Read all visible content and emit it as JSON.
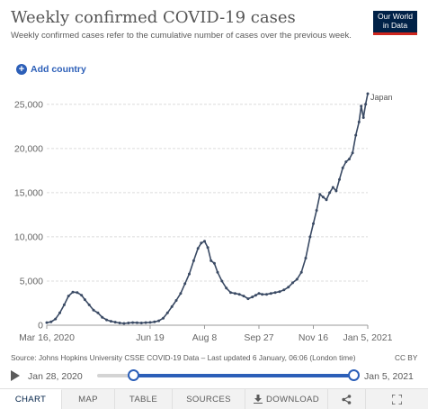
{
  "header": {
    "title": "Weekly confirmed COVID-19 cases",
    "subtitle": "Weekly confirmed cases refer to the cumulative number of cases over the previous week.",
    "logo_line1": "Our World",
    "logo_line2": "in Data"
  },
  "controls": {
    "add_country_label": "Add country"
  },
  "footer": {
    "source": "Source: Johns Hopkins University CSSE COVID-19 Data – Last updated 6 January, 06:06 (London time)",
    "license": "CC BY"
  },
  "timeline": {
    "start_label": "Jan 28, 2020",
    "end_label": "Jan 5, 2021",
    "range_start_fraction": 0.14,
    "range_end_fraction": 0.99
  },
  "tabs": {
    "chart": "CHART",
    "map": "MAP",
    "table": "TABLE",
    "sources": "SOURCES",
    "download": "DOWNLOAD"
  },
  "icons": {
    "add": "plus-circle-icon",
    "play": "play-icon",
    "download": "download-icon",
    "share": "share-icon",
    "expand": "expand-icon"
  },
  "colors": {
    "series": "#3a4a64",
    "accent": "#2c5fb8",
    "logo_bg": "#002147",
    "logo_bar": "#ce261e"
  },
  "chart_data": {
    "type": "line",
    "xlim": [
      "2020-03-16",
      "2021-01-05"
    ],
    "ylim": [
      0,
      26000
    ],
    "x_ticks": [
      "Mar 16, 2020",
      "Jun 19",
      "Aug 8",
      "Sep 27",
      "Nov 16",
      "Jan 5, 2021"
    ],
    "x_tick_dates": [
      "2020-03-16",
      "2020-06-19",
      "2020-08-08",
      "2020-09-27",
      "2020-11-16",
      "2021-01-05"
    ],
    "y_ticks": [
      "0",
      "5,000",
      "10,000",
      "15,000",
      "20,000",
      "25,000"
    ],
    "y_tick_values": [
      0,
      5000,
      10000,
      15000,
      20000,
      25000
    ],
    "grid": true,
    "series": [
      {
        "name": "Japan",
        "dates": [
          "2020-03-16",
          "2020-03-20",
          "2020-03-24",
          "2020-03-28",
          "2020-04-01",
          "2020-04-05",
          "2020-04-09",
          "2020-04-13",
          "2020-04-17",
          "2020-04-20",
          "2020-04-24",
          "2020-04-28",
          "2020-05-02",
          "2020-05-06",
          "2020-05-10",
          "2020-05-14",
          "2020-05-18",
          "2020-05-22",
          "2020-05-26",
          "2020-05-30",
          "2020-06-03",
          "2020-06-07",
          "2020-06-11",
          "2020-06-15",
          "2020-06-19",
          "2020-06-23",
          "2020-06-27",
          "2020-07-01",
          "2020-07-05",
          "2020-07-09",
          "2020-07-13",
          "2020-07-17",
          "2020-07-21",
          "2020-07-25",
          "2020-07-29",
          "2020-08-02",
          "2020-08-05",
          "2020-08-08",
          "2020-08-11",
          "2020-08-14",
          "2020-08-17",
          "2020-08-20",
          "2020-08-24",
          "2020-08-28",
          "2020-09-01",
          "2020-09-05",
          "2020-09-09",
          "2020-09-13",
          "2020-09-17",
          "2020-09-21",
          "2020-09-24",
          "2020-09-27",
          "2020-09-30",
          "2020-10-04",
          "2020-10-08",
          "2020-10-12",
          "2020-10-16",
          "2020-10-20",
          "2020-10-24",
          "2020-10-28",
          "2020-11-01",
          "2020-11-05",
          "2020-11-09",
          "2020-11-13",
          "2020-11-16",
          "2020-11-19",
          "2020-11-22",
          "2020-11-25",
          "2020-11-28",
          "2020-12-01",
          "2020-12-04",
          "2020-12-07",
          "2020-12-10",
          "2020-12-13",
          "2020-12-16",
          "2020-12-19",
          "2020-12-22",
          "2020-12-25",
          "2020-12-28",
          "2020-12-30",
          "2021-01-01",
          "2021-01-03",
          "2021-01-05"
        ],
        "values": [
          300,
          380,
          700,
          1400,
          2300,
          3300,
          3750,
          3700,
          3400,
          2900,
          2300,
          1700,
          1400,
          900,
          600,
          450,
          350,
          250,
          200,
          250,
          300,
          280,
          250,
          300,
          320,
          380,
          500,
          800,
          1400,
          2100,
          2800,
          3600,
          4700,
          5800,
          7300,
          8700,
          9300,
          9500,
          8800,
          7300,
          7000,
          6000,
          5000,
          4200,
          3700,
          3600,
          3500,
          3300,
          3000,
          3200,
          3400,
          3600,
          3500,
          3500,
          3600,
          3700,
          3800,
          4000,
          4300,
          4800,
          5200,
          6000,
          7600,
          10000,
          11500,
          13000,
          14800,
          14500,
          14200,
          15000,
          15600,
          15200,
          16500,
          17800,
          18500,
          18800,
          19500,
          21500,
          23000,
          24800,
          23500,
          25000,
          26200
        ]
      }
    ]
  }
}
